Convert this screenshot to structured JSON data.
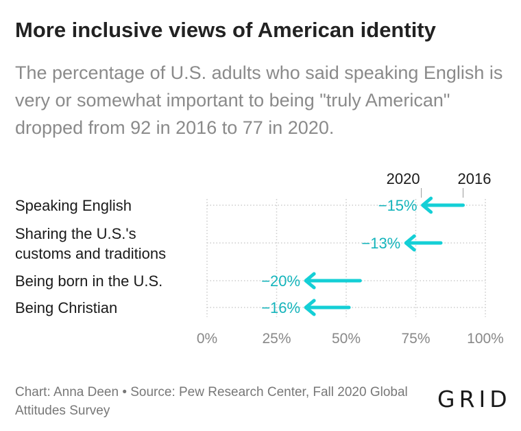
{
  "title": "More inclusive views of American identity",
  "subtitle": "The percentage of U.S. adults who said speaking English is very or somewhat important to being \"truly American\" dropped from 92 in 2016 to 77 in 2020.",
  "source": "Chart: Anna Deen • Source: Pew Research Center, Fall 2020 Global Attitudes Survey",
  "logo": "GRID",
  "colors": {
    "accent": "#14cfd6",
    "label": "#14b4bb",
    "grid": "#cccccc",
    "text": "#1a1a1a"
  },
  "chart_data": {
    "type": "arrow",
    "unit": "%",
    "xlim": [
      0,
      100
    ],
    "x_ticks": [
      "0%",
      "25%",
      "50%",
      "75%",
      "100%"
    ],
    "grid": true,
    "legend": {
      "start_label": "2016",
      "end_label": "2020"
    },
    "categories": [
      {
        "lines": [
          "Speaking English"
        ],
        "start": 92,
        "end": 77,
        "change_label": "−15%"
      },
      {
        "lines": [
          "Sharing the U.S.'s",
          "customs and traditions"
        ],
        "start": 84,
        "end": 71,
        "change_label": "−13%"
      },
      {
        "lines": [
          "Being born in the U.S."
        ],
        "start": 55,
        "end": 35,
        "change_label": "−20%"
      },
      {
        "lines": [
          "Being Christian"
        ],
        "start": 51,
        "end": 35,
        "change_label": "−16%"
      }
    ]
  }
}
